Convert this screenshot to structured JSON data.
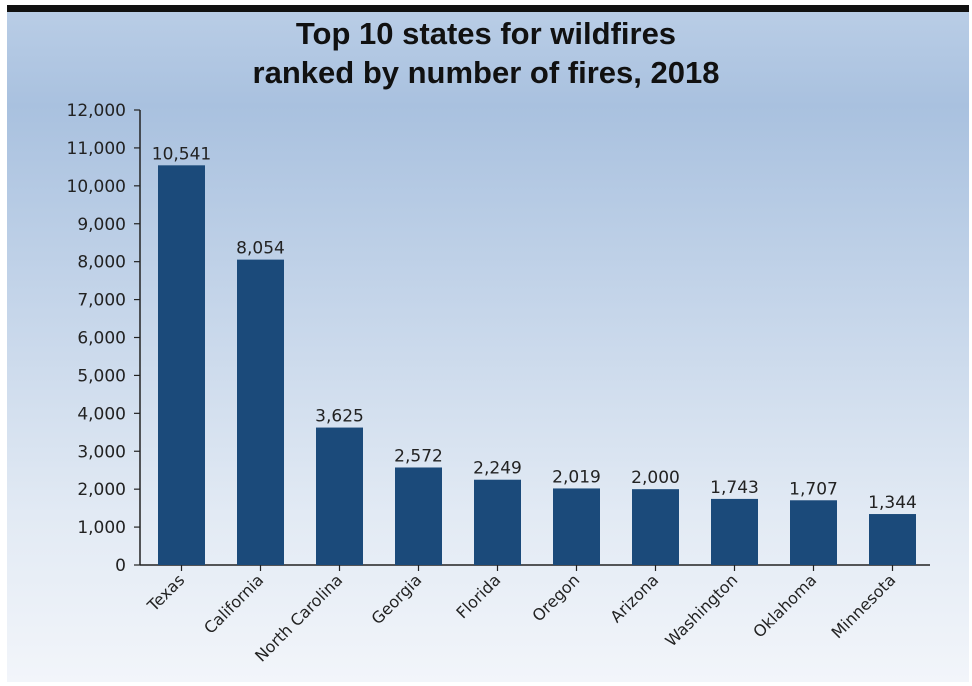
{
  "chart_data": {
    "type": "bar",
    "title_line1": "Top 10 states for wildfires",
    "title_line2": "ranked by number of fires, 2018",
    "categories": [
      "Texas",
      "California",
      "North Carolina",
      "Georgia",
      "Florida",
      "Oregon",
      "Arizona",
      "Washington",
      "Oklahoma",
      "Minnesota"
    ],
    "values": [
      10541,
      8054,
      3625,
      2572,
      2249,
      2019,
      2000,
      1743,
      1707,
      1344
    ],
    "data_labels": [
      "10,541",
      "8,054",
      "3,625",
      "2,572",
      "2,249",
      "2,019",
      "2,000",
      "1,743",
      "1,707",
      "1,344"
    ],
    "y_ticks": [
      0,
      1000,
      2000,
      3000,
      4000,
      5000,
      6000,
      7000,
      8000,
      9000,
      10000,
      11000,
      12000
    ],
    "y_tick_labels": [
      "0",
      "1,000",
      "2,000",
      "3,000",
      "4,000",
      "5,000",
      "6,000",
      "7,000",
      "8,000",
      "9,000",
      "10,000",
      "11,000",
      "12,000"
    ],
    "ylim": [
      0,
      12000
    ],
    "xlabel": "",
    "ylabel": "",
    "grid": false,
    "bar_color": "#1b4a7a"
  }
}
